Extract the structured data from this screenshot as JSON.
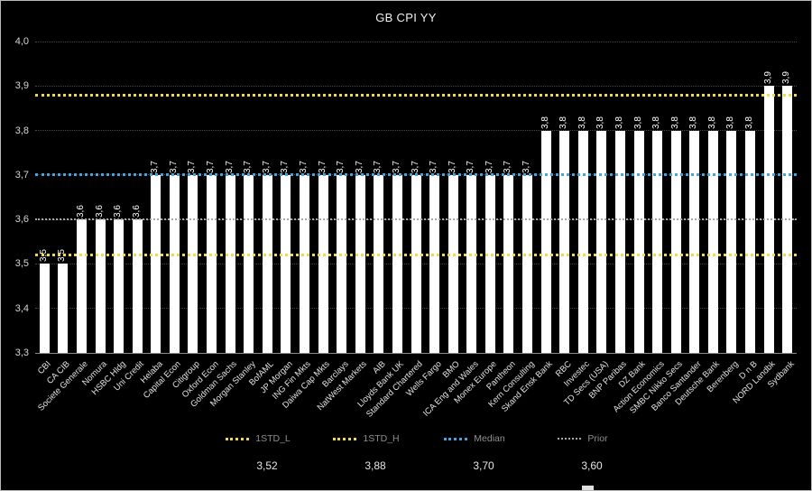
{
  "window": {
    "background": "#000000"
  },
  "chart_data": {
    "type": "bar",
    "title": "GB CPI YY",
    "bar_color": "#ffffff",
    "grid": true,
    "legend_position": "bottom",
    "ylim": [
      3.3,
      4.0
    ],
    "yticks": [
      {
        "value": 4.0,
        "label": "4,0"
      },
      {
        "value": 3.9,
        "label": "3,9"
      },
      {
        "value": 3.8,
        "label": "3,8"
      },
      {
        "value": 3.7,
        "label": "3,7"
      },
      {
        "value": 3.6,
        "label": "3,6"
      },
      {
        "value": 3.5,
        "label": "3,5"
      },
      {
        "value": 3.4,
        "label": "3,4"
      },
      {
        "value": 3.3,
        "label": "3,3"
      }
    ],
    "categories": [
      "CBI",
      "CA CIB",
      "Societe Generale",
      "Nomura",
      "HSBC Hldg",
      "Uni Credit",
      "Helaba",
      "Capital Econ",
      "Citigroup",
      "Oxford Econ",
      "Goldman Sachs",
      "Morgan Stanley",
      "BofAML",
      "JP Morgan",
      "ING Fin Mkts",
      "Daiwa Cap Mkts",
      "Barclays",
      "NatWest Markets",
      "AIB",
      "Lloyds Bank UK",
      "Standard Chartered",
      "Wells Fargo",
      "BMO",
      "ICA Eng and Wales",
      "Monex Europe",
      "Pantheon",
      "Kern Consulting",
      "Skand Ensk Bank",
      "RBC",
      "Investec",
      "TD Secs (USA)",
      "BNP Paribas",
      "DZ Bank",
      "Action Economics",
      "SMBC Nikko Secs",
      "Banco Santander",
      "Deutsche Bank",
      "Berenberg",
      "D n B",
      "NORD Landbk",
      "Sydbank"
    ],
    "values": [
      3.5,
      3.5,
      3.6,
      3.6,
      3.6,
      3.6,
      3.7,
      3.7,
      3.7,
      3.7,
      3.7,
      3.7,
      3.7,
      3.7,
      3.7,
      3.7,
      3.7,
      3.7,
      3.7,
      3.7,
      3.7,
      3.7,
      3.7,
      3.7,
      3.7,
      3.7,
      3.7,
      3.8,
      3.8,
      3.8,
      3.8,
      3.8,
      3.8,
      3.8,
      3.8,
      3.8,
      3.8,
      3.8,
      3.8,
      3.9,
      3.9
    ],
    "value_labels": [
      "3,5",
      "3,5",
      "3,6",
      "3,6",
      "3,6",
      "3,6",
      "3,7",
      "3,7",
      "3,7",
      "3,7",
      "3,7",
      "3,7",
      "3,7",
      "3,7",
      "3,7",
      "3,7",
      "3,7",
      "3,7",
      "3,7",
      "3,7",
      "3,7",
      "3,7",
      "3,7",
      "3,7",
      "3,7",
      "3,7",
      "3,7",
      "3,8",
      "3,8",
      "3,8",
      "3,8",
      "3,8",
      "3,8",
      "3,8",
      "3,8",
      "3,8",
      "3,8",
      "3,8",
      "3,8",
      "3,9",
      "3,9"
    ],
    "reference_lines": [
      {
        "name": "1STD_L",
        "value": 3.52,
        "label": "3,52",
        "color": "#f2d84b"
      },
      {
        "name": "1STD_H",
        "value": 3.88,
        "label": "3,88",
        "color": "#f2d84b"
      },
      {
        "name": "Median",
        "value": 3.7,
        "label": "3,70",
        "color": "#45a3e0"
      },
      {
        "name": "Prior",
        "value": 3.6,
        "label": "3,60",
        "color": "#a8a8a8"
      }
    ]
  },
  "legend": {
    "items": [
      {
        "label": "1STD_L",
        "value": "3,52",
        "color": "#f2d84b"
      },
      {
        "label": "1STD_H",
        "value": "3,88",
        "color": "#f2d84b"
      },
      {
        "label": "Median",
        "value": "3,70",
        "color": "#45a3e0"
      },
      {
        "label": "Prior",
        "value": "3,60",
        "color": "#a8a8a8"
      }
    ]
  }
}
